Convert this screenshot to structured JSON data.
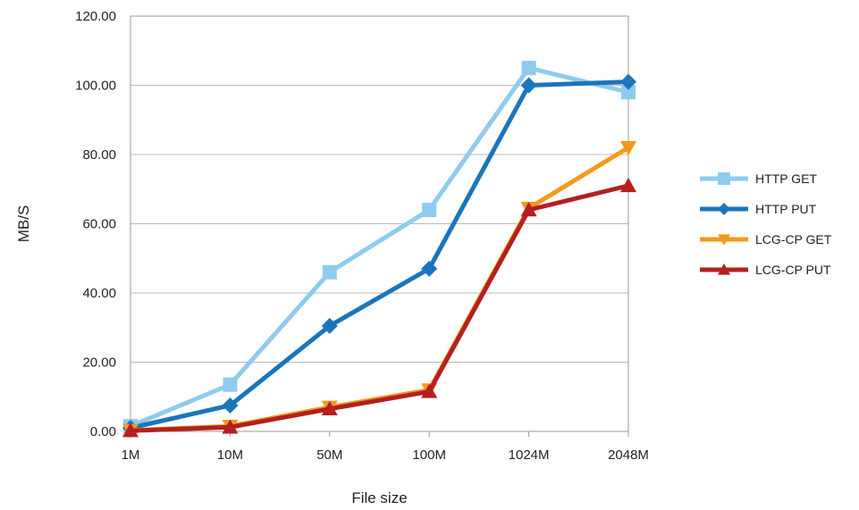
{
  "chart_data": {
    "type": "line",
    "title": "",
    "xlabel": "File size",
    "ylabel": "MB/S",
    "categories": [
      "1M",
      "10M",
      "50M",
      "100M",
      "1024M",
      "2048M"
    ],
    "ylim": [
      0,
      120
    ],
    "yticks": [
      "0.00",
      "20.00",
      "40.00",
      "60.00",
      "80.00",
      "100.00",
      "120.00"
    ],
    "grid": "horizontal",
    "legend_position": "right",
    "series": [
      {
        "name": "HTTP GET",
        "color": "#8ecbee",
        "marker": "square",
        "values": [
          1.5,
          13.5,
          46,
          64,
          105,
          98
        ]
      },
      {
        "name": "HTTP PUT",
        "color": "#1b75bb",
        "marker": "diamond",
        "values": [
          1,
          7.5,
          30.5,
          47,
          100,
          101
        ]
      },
      {
        "name": "LCG-CP GET",
        "color": "#f39a1e",
        "marker": "triangle-down",
        "values": [
          0.3,
          1.5,
          7,
          12,
          64.5,
          82
        ]
      },
      {
        "name": "LCG-CP PUT",
        "color": "#b51f1f",
        "marker": "triangle-up",
        "values": [
          0.2,
          1.2,
          6.5,
          11.5,
          64,
          71
        ]
      }
    ]
  }
}
